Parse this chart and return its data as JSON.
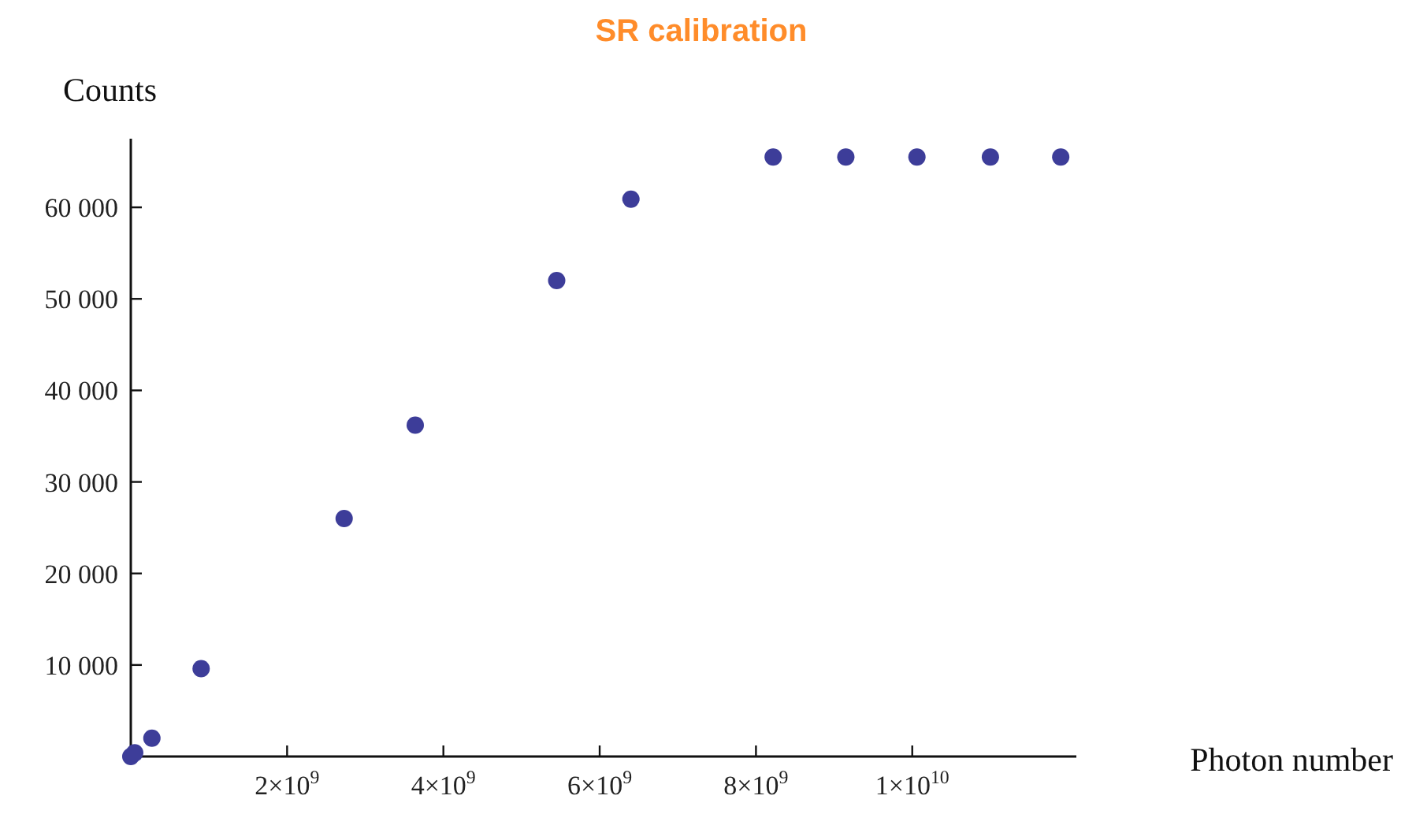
{
  "chart_data": {
    "type": "scatter",
    "title": "SR calibration",
    "xlabel": "Photon number",
    "ylabel": "Counts",
    "marker": "circle",
    "grid": false,
    "x": [
      0,
      50000000.0,
      270000000.0,
      900000000.0,
      2730000000.0,
      3640000000.0,
      5450000000.0,
      6400000000.0,
      8220000000.0,
      9150000000.0,
      10060000000.0,
      11000000000.0,
      11900000000.0
    ],
    "series": [
      {
        "color": "#3d3d99",
        "values": [
          0,
          400,
          2000,
          9600,
          26000,
          36200,
          52000,
          60900,
          65500,
          65500,
          65500,
          65500,
          65500
        ]
      }
    ],
    "xlim": [
      0,
      12100000000.0
    ],
    "ylim": [
      0,
      67500
    ],
    "xticks": [
      {
        "value": 2000000000.0,
        "label": "2×10$^{9}$"
      },
      {
        "value": 4000000000.0,
        "label": "4×10$^{9}$"
      },
      {
        "value": 6000000000.0,
        "label": "6×10$^{9}$"
      },
      {
        "value": 8000000000.0,
        "label": "8×10$^{9}$"
      },
      {
        "value": 10000000000.0,
        "label": "1×10$^{10}$"
      }
    ],
    "yticks": [
      {
        "value": 10000,
        "label": "10 000"
      },
      {
        "value": 20000,
        "label": "20 000"
      },
      {
        "value": 30000,
        "label": "30 000"
      },
      {
        "value": 40000,
        "label": "40 000"
      },
      {
        "value": 50000,
        "label": "50 000"
      },
      {
        "value": 60000,
        "label": "60 000"
      }
    ]
  }
}
